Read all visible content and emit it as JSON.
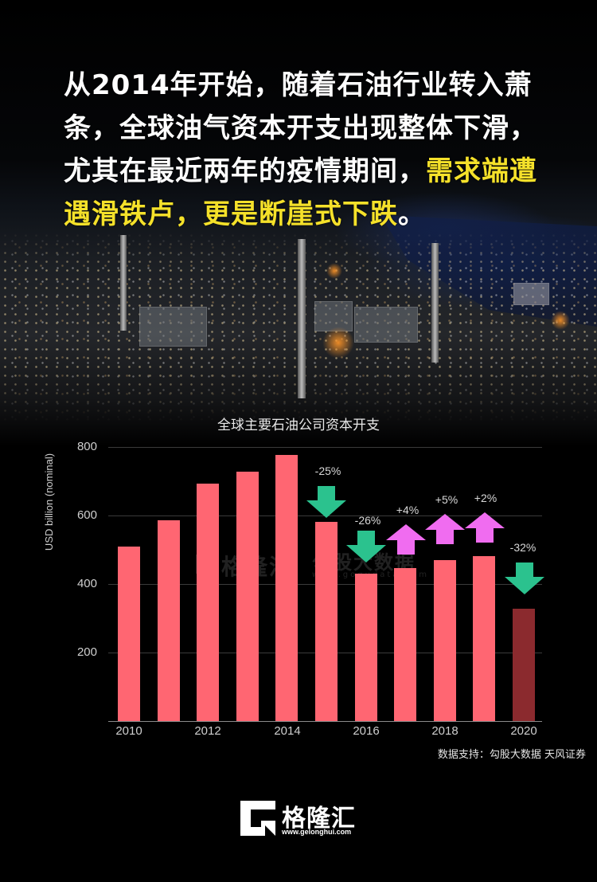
{
  "headline": {
    "line1": "从2014年开始，随着石油行业转入萧",
    "line2": "条，全球油气资本开支出现整体下滑，",
    "line3_white": "尤其在最近两年的疫情期间，",
    "line3_yellow": "需求端遭",
    "line4_yellow": "遇滑铁卢，更是断崖式下跌",
    "line4_white": "。",
    "highlight_color": "#f5e12a"
  },
  "chart": {
    "title": "全球主要石油公司资本开支",
    "y_label": "USD billion (nominal)",
    "y_ticks": [
      "800",
      "600",
      "400",
      "200"
    ],
    "x_ticks": [
      "2010",
      "2012",
      "2014",
      "2016",
      "2018",
      "2020"
    ],
    "annotations": {
      "a2015": "-25%",
      "a2016": "-26%",
      "a2017": "+4%",
      "a2018": "+5%",
      "a2019": "+2%",
      "a2020": "-32%"
    },
    "watermark1": "格隆汇",
    "watermark2": "勾股大数据",
    "watermark2_url": "www.gogudata.com",
    "source": "数据支持：勾股大数据 天风证券"
  },
  "chart_data": {
    "type": "bar",
    "title": "全球主要石油公司资本开支",
    "xlabel": "",
    "ylabel": "USD billion (nominal)",
    "ylim": [
      0,
      800
    ],
    "categories": [
      "2010",
      "2011",
      "2012",
      "2013",
      "2014",
      "2015",
      "2016",
      "2017",
      "2018",
      "2019",
      "2020"
    ],
    "values": [
      510,
      585,
      693,
      728,
      777,
      582,
      430,
      447,
      470,
      481,
      328
    ],
    "bar_colors": [
      "#ff6672",
      "#ff6672",
      "#ff6672",
      "#ff6672",
      "#ff6672",
      "#ff6672",
      "#ff6672",
      "#ff6672",
      "#ff6672",
      "#ff6672",
      "#8b2a2e"
    ],
    "annotations": [
      {
        "x": "2015",
        "text": "-25%",
        "arrow": "down",
        "color": "#2bc28e"
      },
      {
        "x": "2016",
        "text": "-26%",
        "arrow": "down",
        "color": "#2bc28e"
      },
      {
        "x": "2017",
        "text": "+4%",
        "arrow": "up",
        "color": "#f06cf0"
      },
      {
        "x": "2018",
        "text": "+5%",
        "arrow": "up",
        "color": "#f06cf0"
      },
      {
        "x": "2019",
        "text": "+2%",
        "arrow": "up",
        "color": "#f06cf0"
      },
      {
        "x": "2020",
        "text": "-32%",
        "arrow": "down",
        "color": "#2bc28e"
      }
    ],
    "x_tick_labels": [
      "2010",
      "2012",
      "2014",
      "2016",
      "2018",
      "2020"
    ],
    "y_tick_labels": [
      "200",
      "400",
      "600",
      "800"
    ],
    "grid": true,
    "legend": null
  },
  "footer": {
    "brand": "格隆汇",
    "url": "www.gelonghui.com"
  }
}
